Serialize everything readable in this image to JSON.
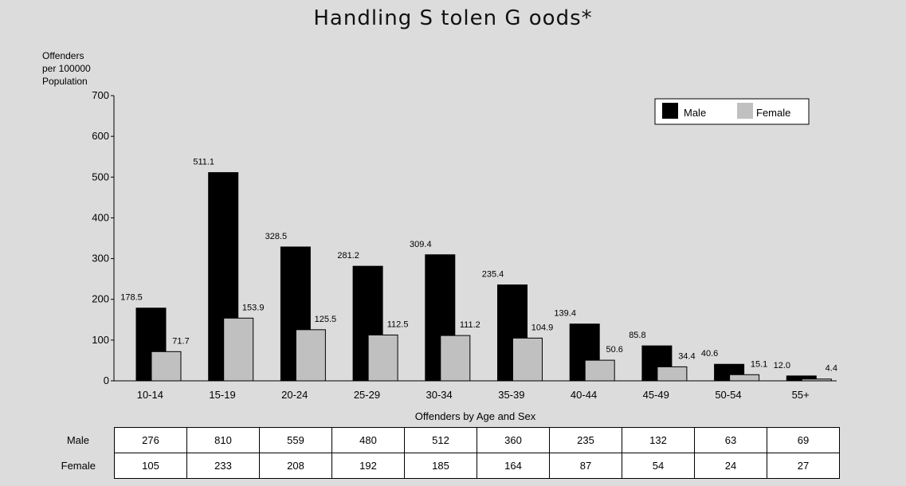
{
  "chart_data": {
    "type": "bar",
    "title": "Handling S tolen G oods*",
    "ylabel_lines": [
      "Offenders",
      "per 100000",
      "Population"
    ],
    "xlabel": "Offenders by Age and Sex",
    "categories": [
      "10-14",
      "15-19",
      "20-24",
      "25-29",
      "30-34",
      "35-39",
      "40-44",
      "45-49",
      "50-54",
      "55+"
    ],
    "ylim": [
      0,
      700
    ],
    "yticks": [
      "0",
      "100",
      "200",
      "300",
      "400",
      "500",
      "600",
      "700"
    ],
    "legend_position": "top-right",
    "series": [
      {
        "name": "Male",
        "color": "#000000",
        "values": [
          178.5,
          511.1,
          328.5,
          281.2,
          309.4,
          235.4,
          139.4,
          85.8,
          40.6,
          12.0
        ],
        "labels": [
          "178.5",
          "511.1",
          "328.5",
          "281.2",
          "309.4",
          "235.4",
          "139.4",
          "85.8",
          "40.6",
          "12.0"
        ]
      },
      {
        "name": "Female",
        "color": "#c0c0c0",
        "values": [
          71.7,
          153.9,
          125.5,
          112.5,
          111.2,
          104.9,
          50.6,
          34.4,
          15.1,
          4.4
        ],
        "labels": [
          "71.7",
          "153.9",
          "125.5",
          "112.5",
          "111.2",
          "104.9",
          "50.6",
          "34.4",
          "15.1",
          "4.4"
        ]
      }
    ],
    "table": {
      "rows": [
        {
          "label": "Male",
          "values": [
            "276",
            "810",
            "559",
            "480",
            "512",
            "360",
            "235",
            "132",
            "63",
            "69"
          ]
        },
        {
          "label": "Female",
          "values": [
            "105",
            "233",
            "208",
            "192",
            "185",
            "164",
            "87",
            "54",
            "24",
            "27"
          ]
        }
      ]
    }
  }
}
